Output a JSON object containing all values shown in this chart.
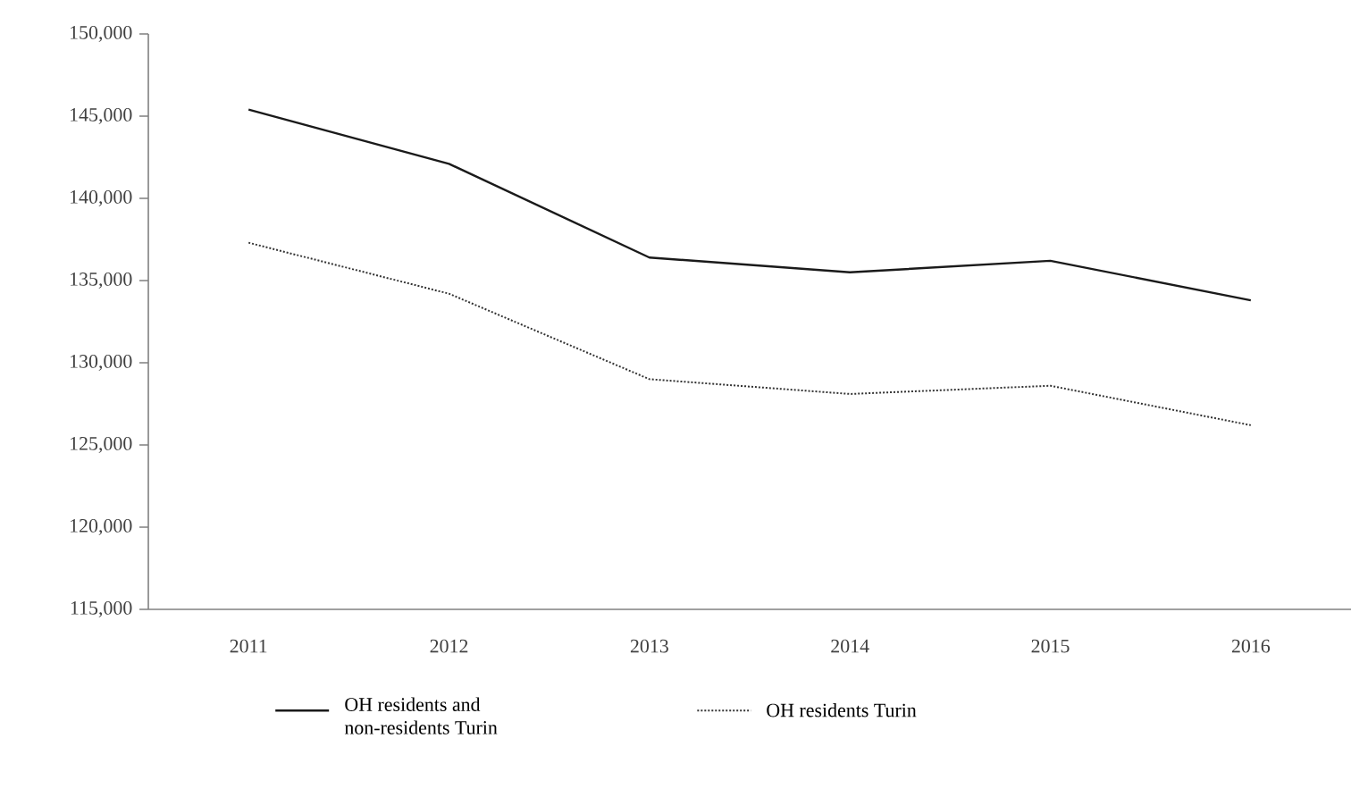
{
  "chart_data": {
    "type": "line",
    "categories": [
      "2011",
      "2012",
      "2013",
      "2014",
      "2015",
      "2016"
    ],
    "series": [
      {
        "name": "OH residents and non-residents Turin",
        "color": "#1a1a1a",
        "line_style": "solid",
        "values": [
          145400,
          142100,
          136400,
          135500,
          136200,
          133800
        ]
      },
      {
        "name": "OH residents Turin",
        "color": "#333333",
        "line_style": "dotted",
        "values": [
          137300,
          134200,
          129000,
          128100,
          128600,
          126200
        ]
      }
    ],
    "ylim": [
      115000,
      150000
    ],
    "yticks": [
      {
        "value": 115000,
        "label": "115,000"
      },
      {
        "value": 120000,
        "label": "120,000"
      },
      {
        "value": 125000,
        "label": "125,000"
      },
      {
        "value": 130000,
        "label": "130,000"
      },
      {
        "value": 135000,
        "label": "135,000"
      },
      {
        "value": 140000,
        "label": "140,000"
      },
      {
        "value": 145000,
        "label": "145,000"
      },
      {
        "value": 150000,
        "label": "150,000"
      }
    ],
    "grid": false,
    "legend": "bottom",
    "marker": "none"
  }
}
